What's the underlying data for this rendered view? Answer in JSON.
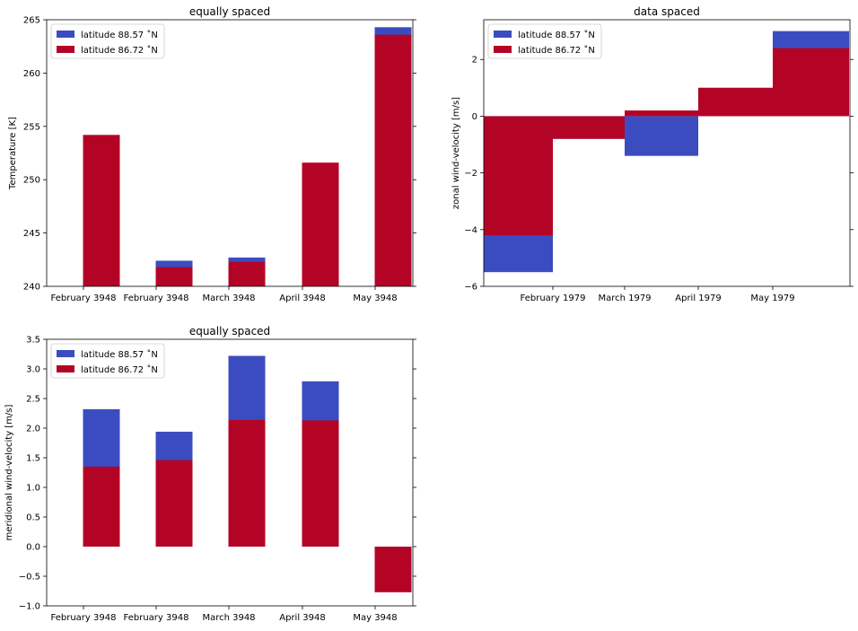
{
  "chart_data": [
    {
      "type": "bar",
      "title": "equally spaced",
      "xlabel": "",
      "ylabel": "Temperature [K]",
      "ylim": [
        240,
        265
      ],
      "yticks": [
        "240",
        "245",
        "250",
        "255",
        "260",
        "265"
      ],
      "categories": [
        "February 3948",
        "February 3948",
        "March 3948",
        "April 3948",
        "May 3948"
      ],
      "series": [
        {
          "name": "latitude 88.57 $^\\circ$N",
          "label": "latitude 88.57 ˚N",
          "color": "#3b4cc0",
          "values": [
            240.0,
            242.4,
            242.7,
            240.0,
            264.3
          ]
        },
        {
          "name": "latitude 86.72 $^\\circ$N",
          "label": "latitude 86.72 ˚N",
          "color": "#b40426",
          "values": [
            254.2,
            241.8,
            242.3,
            251.6,
            263.6
          ]
        }
      ],
      "grid": false,
      "legend": "top-left"
    },
    {
      "type": "bar",
      "title": "data spaced",
      "xlabel": "",
      "ylabel": "zonal wind-velocity [m/s]",
      "ylim": [
        -6,
        3.4
      ],
      "yticks": [
        "−6",
        "−4",
        "−2",
        "0",
        "2"
      ],
      "xtick_labels": [
        "February 1979",
        "March 1979",
        "April 1979",
        "May 1979"
      ],
      "series": [
        {
          "name": "latitude 88.57 ˚N",
          "label": "latitude 88.57 ˚N",
          "color": "#3b4cc0",
          "values": [
            -5.5,
            -0.8,
            -1.4,
            1.0,
            3.0
          ]
        },
        {
          "name": "latitude 86.72 ˚N",
          "label": "latitude 86.72 ˚N",
          "color": "#b40426",
          "values": [
            -4.2,
            -0.8,
            0.2,
            1.0,
            2.4
          ]
        }
      ],
      "grid": false,
      "legend": "top-left"
    },
    {
      "type": "bar",
      "title": "equally spaced",
      "xlabel": "",
      "ylabel": "meridional wind-velocity [m/s]",
      "ylim": [
        -1.0,
        3.5
      ],
      "yticks": [
        "−1.0",
        "−0.5",
        "0.0",
        "0.5",
        "1.0",
        "1.5",
        "2.0",
        "2.5",
        "3.0",
        "3.5"
      ],
      "categories": [
        "February 3948",
        "February 3948",
        "March 3948",
        "April 3948",
        "May 3948"
      ],
      "series": [
        {
          "name": "latitude 88.57 ˚N",
          "label": "latitude 88.57 ˚N",
          "color": "#3b4cc0",
          "values": [
            2.32,
            1.94,
            3.22,
            2.79,
            -0.7
          ]
        },
        {
          "name": "latitude 86.72 ˚N",
          "label": "latitude 86.72 ˚N",
          "color": "#b40426",
          "values": [
            1.35,
            1.46,
            2.14,
            2.13,
            -0.77
          ]
        }
      ],
      "grid": false,
      "legend": "top-left"
    }
  ]
}
